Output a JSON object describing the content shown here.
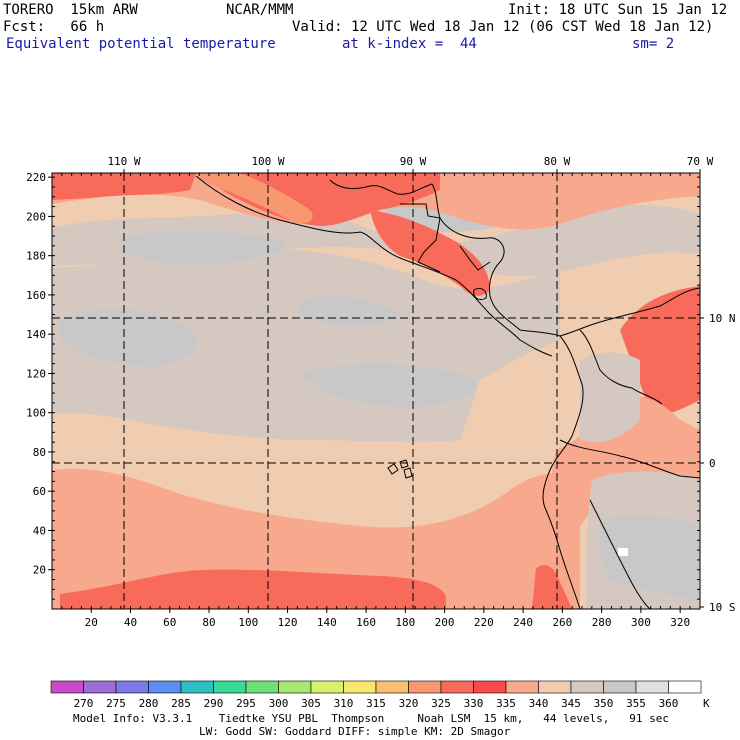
{
  "header": {
    "model": "TORERO  15km ARW",
    "org": "NCAR/MMM",
    "init": "Init: 18 UTC Sun 15 Jan 12",
    "fcst": "Fcst:   66 h",
    "valid": "Valid: 12 UTC Wed 18 Jan 12 (06 CST Wed 18 Jan 12)",
    "field": "Equivalent potential temperature",
    "level": "at k-index =  44",
    "smooth": "sm= 2"
  },
  "axes": {
    "y_ticks": [
      "220",
      "200",
      "180",
      "160",
      "140",
      "120",
      "100",
      "80",
      "60",
      "40",
      "20"
    ],
    "x_ticks": [
      "20",
      "40",
      "60",
      "80",
      "100",
      "120",
      "140",
      "160",
      "180",
      "200",
      "220",
      "240",
      "260",
      "280",
      "300",
      "320"
    ],
    "lon_labels": [
      "110 W",
      "100 W",
      "90 W",
      "80 W",
      "70 W"
    ],
    "lat_labels": [
      "10 N",
      "0",
      "10 S"
    ]
  },
  "colorbar": {
    "values": [
      "270",
      "275",
      "280",
      "285",
      "290",
      "295",
      "300",
      "305",
      "310",
      "315",
      "320",
      "325",
      "330",
      "335",
      "340",
      "345",
      "350",
      "355",
      "360"
    ],
    "unit": "K",
    "colors": [
      "#c84cc8",
      "#9e6ed8",
      "#7a7ae8",
      "#5a8ef0",
      "#2ec0c0",
      "#3ad89a",
      "#6ee07a",
      "#a6e870",
      "#d8f070",
      "#f8e870",
      "#f8c070",
      "#f89870",
      "#f86a5a",
      "#f84a4a",
      "#f8a88c",
      "#f0ccb0",
      "#d4c8c0",
      "#c8c8c8",
      "#e0e0e0",
      "#ffffff"
    ]
  },
  "footer": {
    "line1": "Model Info: V3.3.1    Tiedtke YSU PBL  Thompson     Noah LSM  15 km,   44 levels,   91 sec",
    "line2": "LW: Godd SW: Goddard DIFF: simple KM: 2D Smagor"
  }
}
